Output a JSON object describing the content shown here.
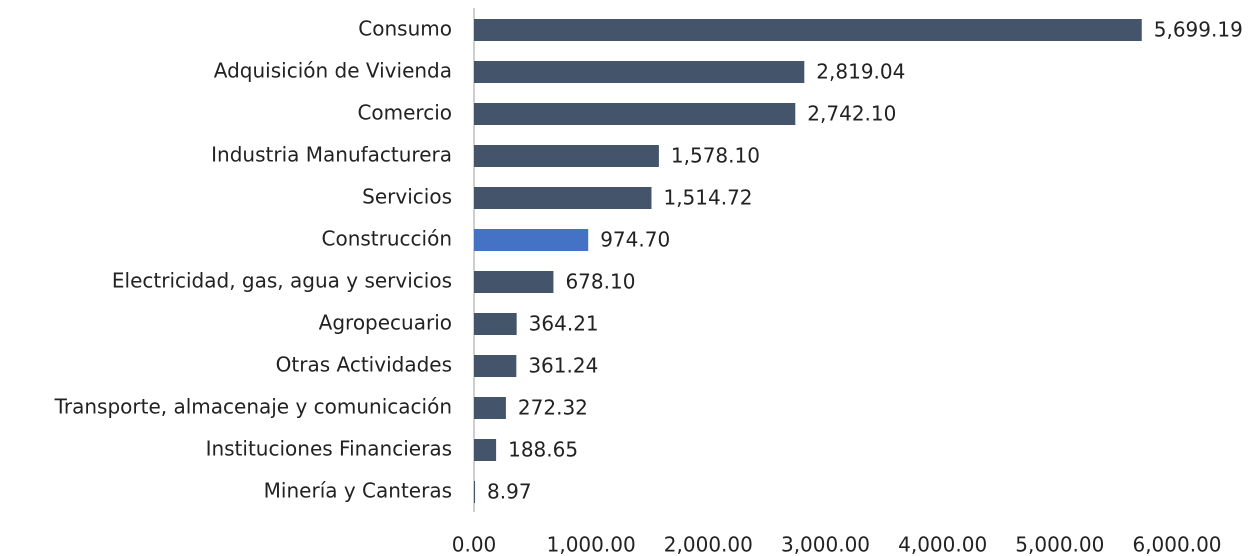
{
  "chart_data": {
    "type": "bar",
    "orientation": "horizontal",
    "categories": [
      "Consumo",
      "Adquisición de Vivienda",
      "Comercio",
      "Industria Manufacturera",
      "Servicios",
      "Construcción",
      "Electricidad, gas, agua y servicios",
      "Agropecuario",
      "Otras Actividades",
      "Transporte, almacenaje y comunicación",
      "Instituciones Financieras",
      "Minería y Canteras"
    ],
    "values": [
      5699.19,
      2819.04,
      2742.1,
      1578.1,
      1514.72,
      974.7,
      678.1,
      364.21,
      361.24,
      272.32,
      188.65,
      8.97
    ],
    "value_labels": [
      "5,699.19",
      "2,819.04",
      "2,742.10",
      "1,578.10",
      "1,514.72",
      "974.70",
      "678.10",
      "364.21",
      "361.24",
      "272.32",
      "188.65",
      "8.97"
    ],
    "colors": [
      "#44546a",
      "#44546a",
      "#44546a",
      "#44546a",
      "#44546a",
      "#4472c4",
      "#44546a",
      "#44546a",
      "#44546a",
      "#44546a",
      "#44546a",
      "#44546a"
    ],
    "xlim": [
      0,
      6000
    ],
    "xticks": [
      {
        "value": 0,
        "label": "0.00"
      },
      {
        "value": 1000,
        "label": "1,000.00"
      },
      {
        "value": 2000,
        "label": "2,000.00"
      },
      {
        "value": 3000,
        "label": "3,000.00"
      },
      {
        "value": 4000,
        "label": "4,000.00"
      },
      {
        "value": 5000,
        "label": "5,000.00"
      },
      {
        "value": 6000,
        "label": "6,000.00"
      }
    ],
    "grid": false
  }
}
